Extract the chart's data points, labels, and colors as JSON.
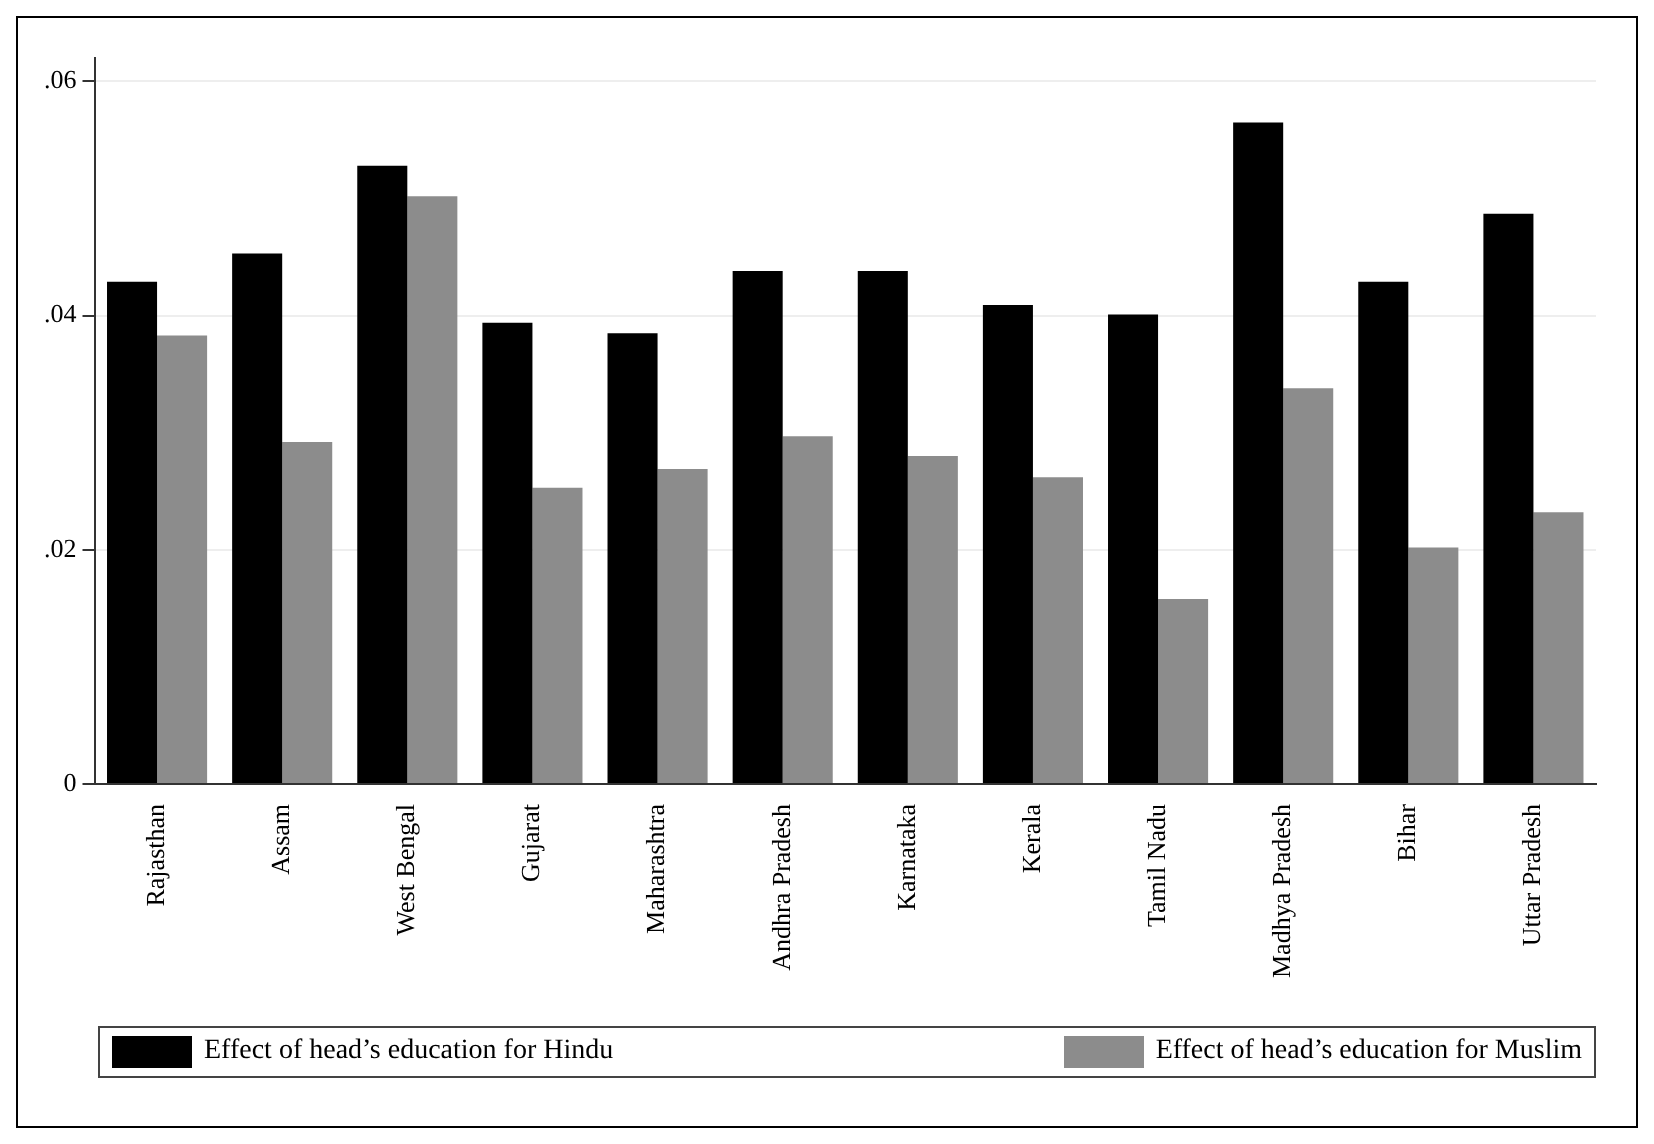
{
  "chart_data": {
    "type": "bar",
    "categories": [
      "Rajasthan",
      "Assam",
      "West Bengal",
      "Gujarat",
      "Maharashtra",
      "Andhra Pradesh",
      "Karnataka",
      "Kerala",
      "Tamil Nadu",
      "Madhya Pradesh",
      "Bihar",
      "Uttar Pradesh"
    ],
    "series": [
      {
        "name": "Effect of head’s education for Hindu",
        "color": "#000000",
        "values": [
          0.0429,
          0.0453,
          0.0528,
          0.0394,
          0.0385,
          0.0438,
          0.0438,
          0.0409,
          0.0401,
          0.0565,
          0.0429,
          0.0487
        ]
      },
      {
        "name": "Effect of head’s education for Muslim",
        "color": "#8c8c8c",
        "values": [
          0.0383,
          0.0292,
          0.0502,
          0.0253,
          0.0269,
          0.0297,
          0.028,
          0.0262,
          0.0158,
          0.0338,
          0.0202,
          0.0232
        ]
      }
    ],
    "ylim": [
      0,
      0.062
    ],
    "yticks": [
      {
        "value": 0,
        "label": "0"
      },
      {
        "value": 0.02,
        "label": ".02"
      },
      {
        "value": 0.04,
        "label": ".04"
      },
      {
        "value": 0.06,
        "label": ".06"
      }
    ],
    "grid": "y",
    "legend": "bottom"
  }
}
